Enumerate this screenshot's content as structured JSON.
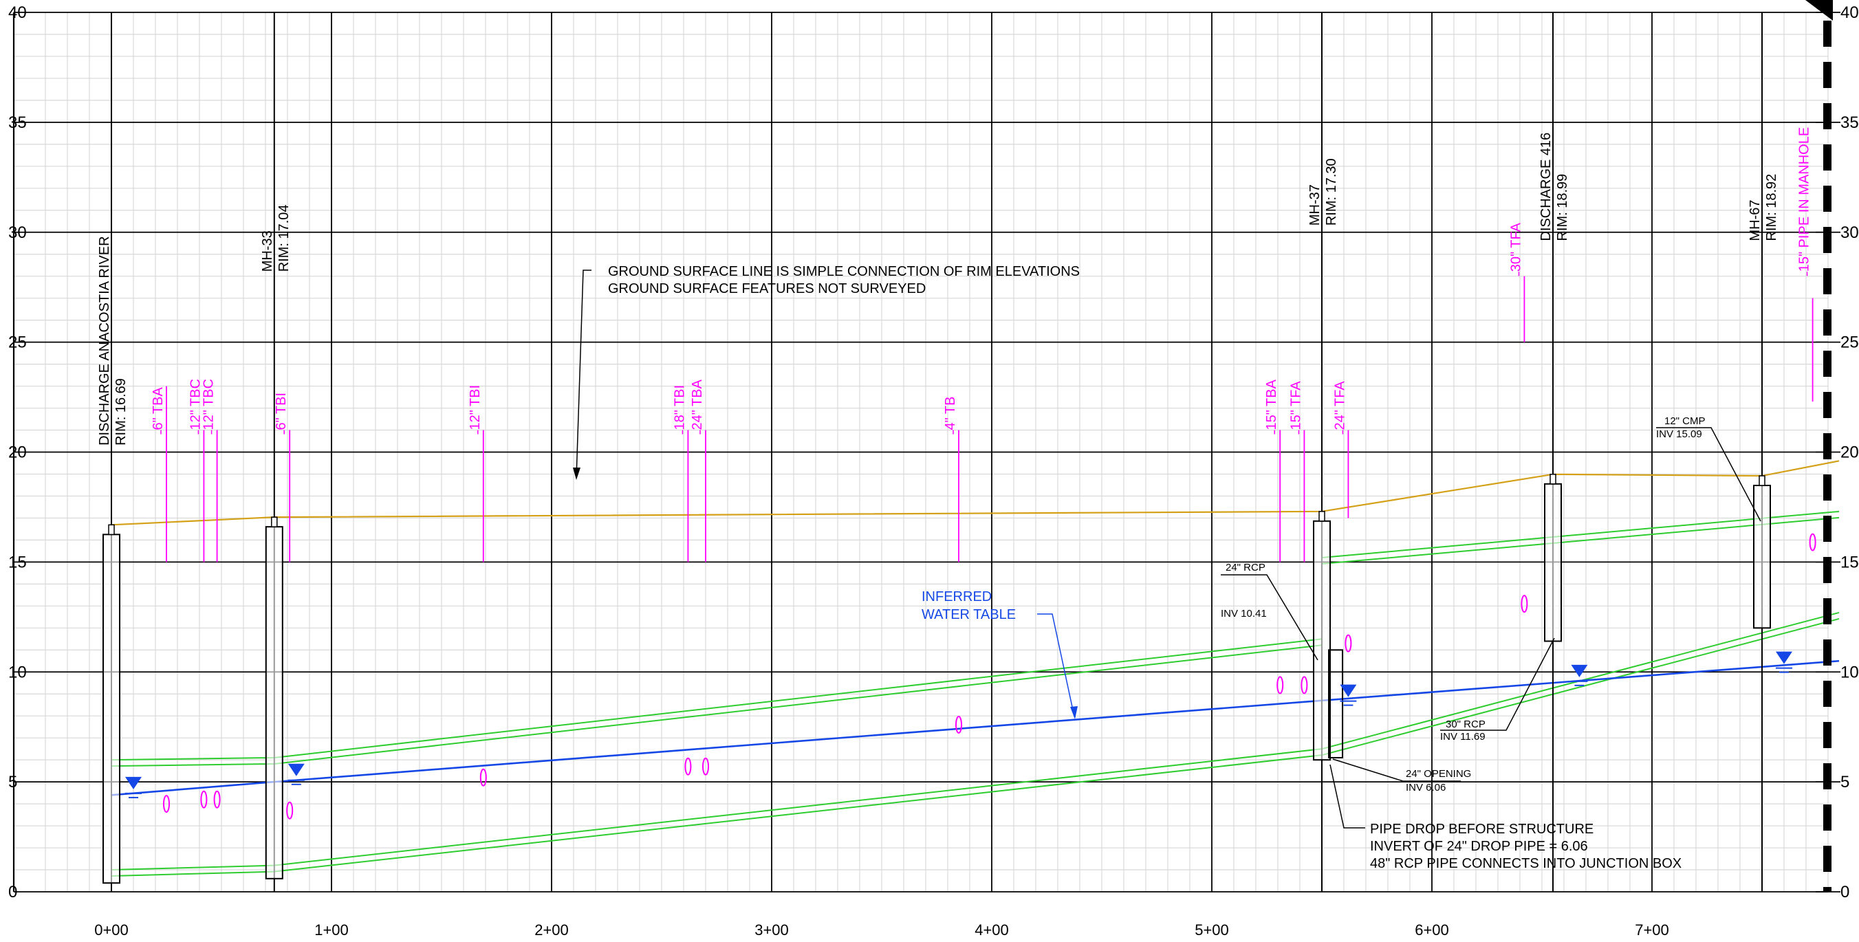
{
  "profile": {
    "elevation_range": [
      0,
      40
    ],
    "station_range_ft": [
      -30,
      790
    ],
    "major_elevation_step": 5,
    "minor_elevation_step": 1,
    "major_station_step_ft": 100,
    "minor_station_step_ft": 10,
    "y_labels_left": [
      "40",
      "35",
      "30",
      "25",
      "20",
      "15",
      "10",
      "5",
      "0"
    ],
    "y_labels_right": [
      "40",
      "35",
      "30",
      "25",
      "20",
      "15",
      "10",
      "5",
      "0"
    ],
    "x_labels": [
      "0+00",
      "1+00",
      "2+00",
      "3+00",
      "4+00",
      "5+00",
      "6+00",
      "7+00"
    ]
  },
  "colors": {
    "grid_minor": "#d8d8d8",
    "grid_major": "#000000",
    "ground": "#d4a017",
    "pipe": "#2ecc2e",
    "water": "#1447e6",
    "utility": "#ff00ff",
    "text": "#000000"
  },
  "structures": [
    {
      "station_ft": 0,
      "label_line1": "DISCHARGE ANACOSTIA RIVER",
      "label_line2": "RIM: 16.69",
      "rim": 16.69,
      "bottom": 0.4
    },
    {
      "station_ft": 74,
      "label_line1": "MH-33",
      "label_line2": "RIM: 17.04",
      "rim": 17.04,
      "bottom": 0.6
    },
    {
      "station_ft": 550,
      "label_line1": "MH-37",
      "label_line2": "RIM: 17.30",
      "rim": 17.3,
      "bottom": 6.0
    },
    {
      "station_ft": 655,
      "label_line1": "DISCHARGE 416",
      "label_line2": "RIM: 18.99",
      "rim": 18.99,
      "bottom": 11.4
    },
    {
      "station_ft": 750,
      "label_line1": "MH-67",
      "label_line2": "RIM: 18.92",
      "rim": 18.92,
      "bottom": 12.0
    }
  ],
  "ground_surface": [
    {
      "sta": 0,
      "elev": 16.69
    },
    {
      "sta": 74,
      "elev": 17.04
    },
    {
      "sta": 550,
      "elev": 17.3
    },
    {
      "sta": 655,
      "elev": 18.99
    },
    {
      "sta": 750,
      "elev": 18.92
    },
    {
      "sta": 785,
      "elev": 19.6
    }
  ],
  "pipes": [
    {
      "sta": [
        0,
        74,
        550
      ],
      "top": [
        6.0,
        6.1,
        11.5
      ],
      "bottom": [
        1.0,
        1.2,
        6.5
      ]
    },
    {
      "sta": [
        550,
        785
      ],
      "top": [
        15.2,
        17.3
      ],
      "bottom": [
        6.5,
        12.7
      ]
    }
  ],
  "water_table": [
    {
      "sta": 0,
      "elev": 4.4
    },
    {
      "sta": 74,
      "elev": 5.0
    },
    {
      "sta": 550,
      "elev": 8.7
    },
    {
      "sta": 785,
      "elev": 10.5
    }
  ],
  "water_markers": [
    {
      "sta": 10,
      "elev": 4.6
    },
    {
      "sta": 84,
      "elev": 5.2
    },
    {
      "sta": 562,
      "elev": 8.8
    },
    {
      "sta": 667,
      "elev": 9.7
    },
    {
      "sta": 760,
      "elev": 10.3
    }
  ],
  "utility_crossings": [
    {
      "label": "6\" TBA",
      "sta": 25,
      "label_bottom": 21.0,
      "line_top": 23.0,
      "line_bottom": 15.0,
      "mark_elev": 4.0
    },
    {
      "label": "12\" TBC",
      "sta": 42,
      "label_bottom": 21.0,
      "line_top": 21.0,
      "line_bottom": 15.0,
      "mark_elev": 4.2
    },
    {
      "label": "12\" TBC",
      "sta": 48,
      "label_bottom": 21.0,
      "line_top": 21.0,
      "line_bottom": 15.0,
      "mark_elev": 4.2
    },
    {
      "label": "6\" TBI",
      "sta": 81,
      "label_bottom": 21.0,
      "line_top": 21.0,
      "line_bottom": 15.0,
      "mark_elev": 3.7
    },
    {
      "label": "12\" TBI",
      "sta": 169,
      "label_bottom": 21.0,
      "line_top": 21.0,
      "line_bottom": 15.0,
      "mark_elev": 5.2
    },
    {
      "label": "18\" TBI",
      "sta": 262,
      "label_bottom": 21.0,
      "line_top": 21.0,
      "line_bottom": 15.0,
      "mark_elev": 5.7
    },
    {
      "label": "24\" TBA",
      "sta": 270,
      "label_bottom": 21.0,
      "line_top": 21.0,
      "line_bottom": 15.0,
      "mark_elev": 5.7
    },
    {
      "label": "4\" TB",
      "sta": 385,
      "label_bottom": 21.0,
      "line_top": 21.0,
      "line_bottom": 15.0,
      "mark_elev": 7.6
    },
    {
      "label": "15\" TBA",
      "sta": 531,
      "label_bottom": 21.0,
      "line_top": 21.0,
      "line_bottom": 15.0,
      "mark_elev": 9.4
    },
    {
      "label": "15\" TFA",
      "sta": 542,
      "label_bottom": 21.0,
      "line_top": 21.0,
      "line_bottom": 15.0,
      "mark_elev": 9.4
    },
    {
      "label": "24\" TFA",
      "sta": 562,
      "label_bottom": 21.0,
      "line_top": 21.0,
      "line_bottom": 17.0,
      "mark_elev": 11.3
    },
    {
      "label": "30\" TFA",
      "sta": 642,
      "label_bottom": 28.2,
      "line_top": 28.0,
      "line_bottom": 25.0,
      "mark_elev": 13.1
    },
    {
      "label": "15\" PIPE IN MANHOLE",
      "sta": 773,
      "label_bottom": 28.2,
      "line_top": 27.0,
      "line_bottom": 22.3,
      "mark_elev": 15.9
    }
  ],
  "notes": {
    "ground_line1": "GROUND SURFACE LINE IS SIMPLE CONNECTION OF RIM ELEVATIONS",
    "ground_line2": "GROUND SURFACE FEATURES NOT SURVEYED",
    "water_line1": "INFERRED",
    "water_line2": "WATER TABLE",
    "rcp24_line1": "24\" RCP",
    "rcp24_line2": "INV 10.41",
    "opening24_line1": "24\" OPENING",
    "opening24_line2": "INV 6.06",
    "rcp30_line1": "30\" RCP",
    "rcp30_line2": "INV 11.69",
    "cmp12_line1": "12\" CMP",
    "cmp12_line2": "INV 15.09",
    "drop_line1": "PIPE DROP BEFORE STRUCTURE",
    "drop_line2": "INVERT OF 24\" DROP PIPE = 6.06",
    "drop_line3": "48\" RCP PIPE CONNECTS INTO JUNCTION BOX"
  }
}
